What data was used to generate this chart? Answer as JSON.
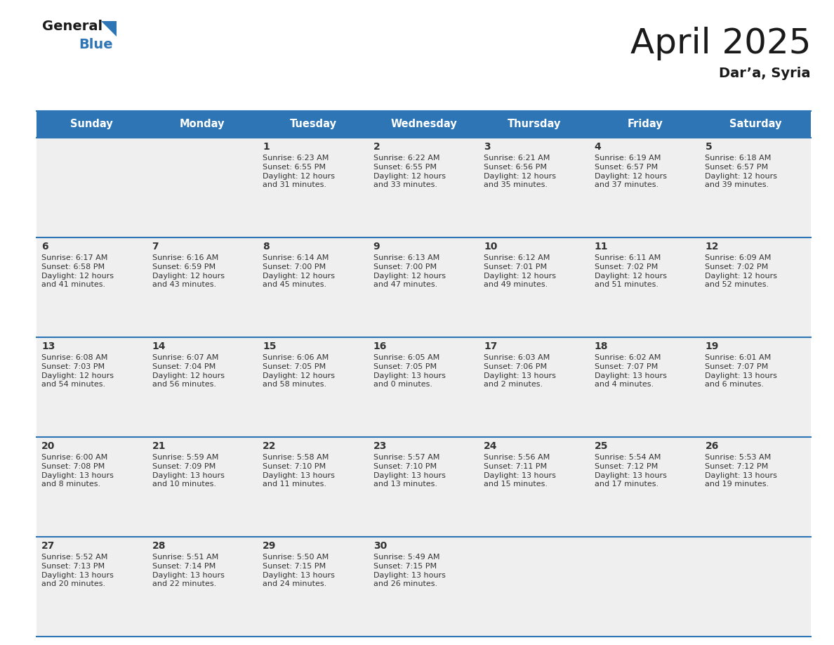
{
  "title": "April 2025",
  "subtitle": "Dar’a, Syria",
  "header_color": "#2E75B6",
  "header_text_color": "#FFFFFF",
  "cell_bg_color": "#EFEFEF",
  "border_color": "#2E75B6",
  "text_color": "#333333",
  "days_of_week": [
    "Sunday",
    "Monday",
    "Tuesday",
    "Wednesday",
    "Thursday",
    "Friday",
    "Saturday"
  ],
  "calendar_data": [
    [
      {
        "day": "",
        "info": ""
      },
      {
        "day": "",
        "info": ""
      },
      {
        "day": "1",
        "info": "Sunrise: 6:23 AM\nSunset: 6:55 PM\nDaylight: 12 hours\nand 31 minutes."
      },
      {
        "day": "2",
        "info": "Sunrise: 6:22 AM\nSunset: 6:55 PM\nDaylight: 12 hours\nand 33 minutes."
      },
      {
        "day": "3",
        "info": "Sunrise: 6:21 AM\nSunset: 6:56 PM\nDaylight: 12 hours\nand 35 minutes."
      },
      {
        "day": "4",
        "info": "Sunrise: 6:19 AM\nSunset: 6:57 PM\nDaylight: 12 hours\nand 37 minutes."
      },
      {
        "day": "5",
        "info": "Sunrise: 6:18 AM\nSunset: 6:57 PM\nDaylight: 12 hours\nand 39 minutes."
      }
    ],
    [
      {
        "day": "6",
        "info": "Sunrise: 6:17 AM\nSunset: 6:58 PM\nDaylight: 12 hours\nand 41 minutes."
      },
      {
        "day": "7",
        "info": "Sunrise: 6:16 AM\nSunset: 6:59 PM\nDaylight: 12 hours\nand 43 minutes."
      },
      {
        "day": "8",
        "info": "Sunrise: 6:14 AM\nSunset: 7:00 PM\nDaylight: 12 hours\nand 45 minutes."
      },
      {
        "day": "9",
        "info": "Sunrise: 6:13 AM\nSunset: 7:00 PM\nDaylight: 12 hours\nand 47 minutes."
      },
      {
        "day": "10",
        "info": "Sunrise: 6:12 AM\nSunset: 7:01 PM\nDaylight: 12 hours\nand 49 minutes."
      },
      {
        "day": "11",
        "info": "Sunrise: 6:11 AM\nSunset: 7:02 PM\nDaylight: 12 hours\nand 51 minutes."
      },
      {
        "day": "12",
        "info": "Sunrise: 6:09 AM\nSunset: 7:02 PM\nDaylight: 12 hours\nand 52 minutes."
      }
    ],
    [
      {
        "day": "13",
        "info": "Sunrise: 6:08 AM\nSunset: 7:03 PM\nDaylight: 12 hours\nand 54 minutes."
      },
      {
        "day": "14",
        "info": "Sunrise: 6:07 AM\nSunset: 7:04 PM\nDaylight: 12 hours\nand 56 minutes."
      },
      {
        "day": "15",
        "info": "Sunrise: 6:06 AM\nSunset: 7:05 PM\nDaylight: 12 hours\nand 58 minutes."
      },
      {
        "day": "16",
        "info": "Sunrise: 6:05 AM\nSunset: 7:05 PM\nDaylight: 13 hours\nand 0 minutes."
      },
      {
        "day": "17",
        "info": "Sunrise: 6:03 AM\nSunset: 7:06 PM\nDaylight: 13 hours\nand 2 minutes."
      },
      {
        "day": "18",
        "info": "Sunrise: 6:02 AM\nSunset: 7:07 PM\nDaylight: 13 hours\nand 4 minutes."
      },
      {
        "day": "19",
        "info": "Sunrise: 6:01 AM\nSunset: 7:07 PM\nDaylight: 13 hours\nand 6 minutes."
      }
    ],
    [
      {
        "day": "20",
        "info": "Sunrise: 6:00 AM\nSunset: 7:08 PM\nDaylight: 13 hours\nand 8 minutes."
      },
      {
        "day": "21",
        "info": "Sunrise: 5:59 AM\nSunset: 7:09 PM\nDaylight: 13 hours\nand 10 minutes."
      },
      {
        "day": "22",
        "info": "Sunrise: 5:58 AM\nSunset: 7:10 PM\nDaylight: 13 hours\nand 11 minutes."
      },
      {
        "day": "23",
        "info": "Sunrise: 5:57 AM\nSunset: 7:10 PM\nDaylight: 13 hours\nand 13 minutes."
      },
      {
        "day": "24",
        "info": "Sunrise: 5:56 AM\nSunset: 7:11 PM\nDaylight: 13 hours\nand 15 minutes."
      },
      {
        "day": "25",
        "info": "Sunrise: 5:54 AM\nSunset: 7:12 PM\nDaylight: 13 hours\nand 17 minutes."
      },
      {
        "day": "26",
        "info": "Sunrise: 5:53 AM\nSunset: 7:12 PM\nDaylight: 13 hours\nand 19 minutes."
      }
    ],
    [
      {
        "day": "27",
        "info": "Sunrise: 5:52 AM\nSunset: 7:13 PM\nDaylight: 13 hours\nand 20 minutes."
      },
      {
        "day": "28",
        "info": "Sunrise: 5:51 AM\nSunset: 7:14 PM\nDaylight: 13 hours\nand 22 minutes."
      },
      {
        "day": "29",
        "info": "Sunrise: 5:50 AM\nSunset: 7:15 PM\nDaylight: 13 hours\nand 24 minutes."
      },
      {
        "day": "30",
        "info": "Sunrise: 5:49 AM\nSunset: 7:15 PM\nDaylight: 13 hours\nand 26 minutes."
      },
      {
        "day": "",
        "info": ""
      },
      {
        "day": "",
        "info": ""
      },
      {
        "day": "",
        "info": ""
      }
    ]
  ],
  "logo_general_color": "#1a1a1a",
  "logo_blue_color": "#2E75B6",
  "logo_triangle_color": "#2E75B6"
}
